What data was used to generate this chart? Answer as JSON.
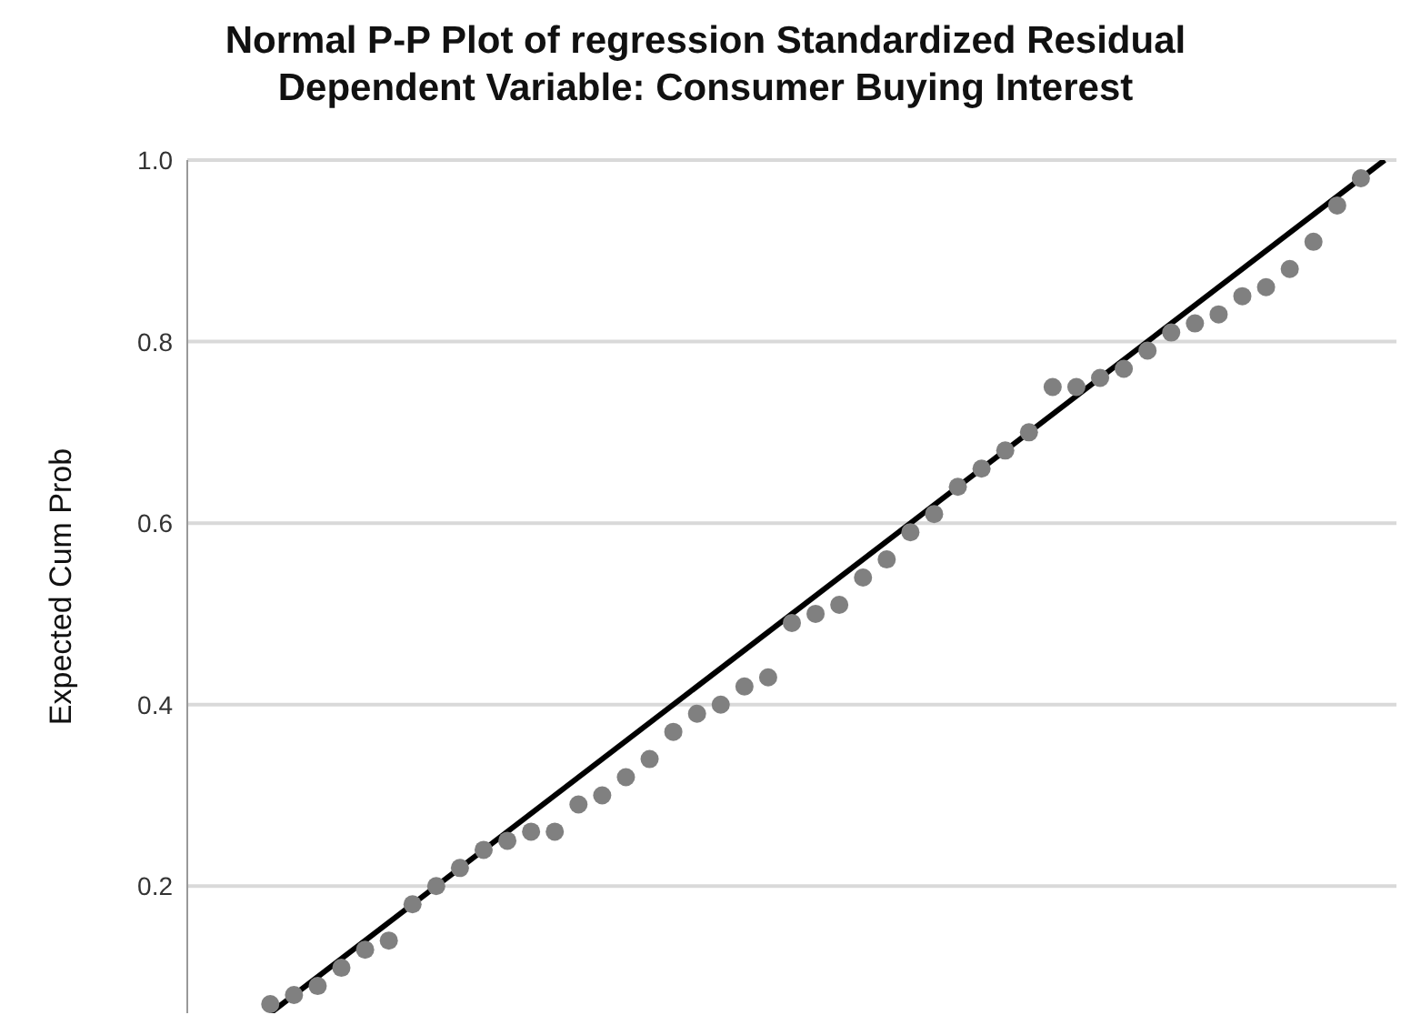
{
  "chart_data": {
    "type": "scatter",
    "title": "Normal P-P Plot of regression Standardized Residual",
    "subtitle": "Dependent Variable: Consumer Buying Interest",
    "ylabel": "Expected Cum Prob",
    "categories": [
      null,
      null,
      null,
      null,
      null,
      null,
      null,
      null,
      null,
      null,
      null,
      null,
      null,
      null,
      null,
      null,
      null,
      null,
      null,
      null,
      null,
      null,
      null,
      null,
      null,
      null,
      null,
      null,
      null,
      null,
      null,
      null,
      null,
      null,
      null,
      null,
      null,
      null,
      null,
      null,
      null,
      null,
      null,
      null,
      null,
      null,
      null,
      null,
      null,
      null,
      null
    ],
    "ylim": [
      0.06,
      1
    ],
    "yticks": [
      {
        "value": 0.2,
        "label": "0.2"
      },
      {
        "value": 0.4,
        "label": "0.4"
      },
      {
        "value": 0.6,
        "label": "0.6"
      },
      {
        "value": 0.8,
        "label": "0.8"
      },
      {
        "value": 1,
        "label": "1.0"
      }
    ],
    "tick_labels": "y",
    "grid": "y",
    "marker": "circle",
    "series": [
      {
        "color": "#808080",
        "values": [
          null,
          null,
          null,
          0.07,
          0.08,
          0.09,
          0.11,
          0.13,
          0.14,
          0.18,
          0.2,
          0.22,
          0.24,
          0.25,
          0.26,
          0.26,
          0.29,
          0.3,
          0.32,
          0.34,
          0.37,
          0.39,
          0.4,
          0.42,
          0.43,
          0.49,
          0.5,
          0.51,
          0.54,
          0.56,
          0.59,
          0.61,
          0.64,
          0.66,
          0.68,
          0.7,
          0.75,
          0.75,
          0.76,
          0.77,
          0.79,
          0.81,
          0.82,
          0.83,
          0.85,
          0.86,
          0.88,
          0.91,
          0.95,
          0.98,
          null
        ]
      },
      {
        "type": "line",
        "marker": "none",
        "color": "#000000",
        "values": [
          null,
          null,
          null,
          0.06,
          null,
          null,
          null,
          null,
          null,
          null,
          null,
          null,
          null,
          null,
          null,
          null,
          null,
          null,
          null,
          null,
          null,
          null,
          null,
          null,
          null,
          null,
          null,
          null,
          null,
          null,
          null,
          null,
          null,
          null,
          null,
          null,
          null,
          null,
          null,
          null,
          null,
          null,
          null,
          null,
          null,
          null,
          null,
          null,
          null,
          null,
          1
        ]
      }
    ]
  }
}
